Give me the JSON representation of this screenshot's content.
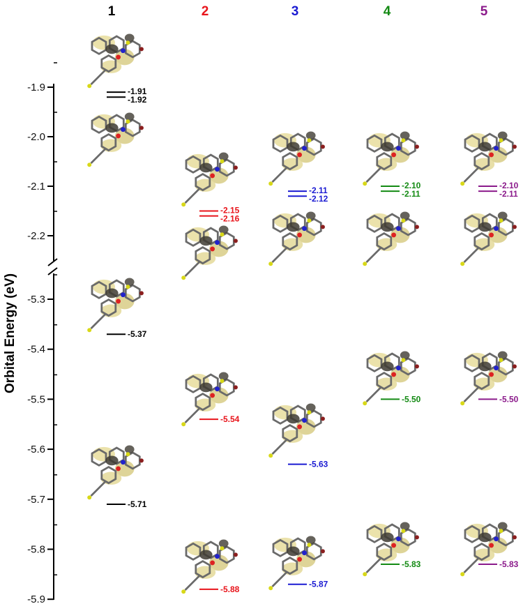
{
  "chart_data": {
    "type": "energy-level-diagram",
    "ylabel": "Orbital Energy (eV)",
    "axis_break": true,
    "ylim_upper": [
      -2.25,
      -1.85
    ],
    "ylim_lower": [
      -5.9,
      -5.25
    ],
    "ticks_upper": [
      -1.9,
      -2.0,
      -2.1,
      -2.2
    ],
    "tick_labels_upper": [
      "-1.9",
      "-2.0",
      "-2.1",
      "-2.2"
    ],
    "ticks_lower": [
      -5.3,
      -5.4,
      -5.5,
      -5.6,
      -5.7,
      -5.8,
      -5.9
    ],
    "tick_labels_lower": [
      "-5.3",
      "-5.4",
      "-5.5",
      "-5.6",
      "-5.7",
      "-5.8",
      "-5.9"
    ],
    "series": [
      {
        "name": "1",
        "color": "#000000",
        "lumo": [
          -1.91,
          -1.92
        ],
        "lumo_labels": [
          "-1.91",
          "-1.92"
        ],
        "homo": [
          -5.37,
          -5.71
        ],
        "homo_labels": [
          "-5.37",
          "-5.71"
        ]
      },
      {
        "name": "2",
        "color": "#e8141b",
        "lumo": [
          -2.15,
          -2.16
        ],
        "lumo_labels": [
          "-2.15",
          "-2.16"
        ],
        "homo": [
          -5.54,
          -5.88
        ],
        "homo_labels": [
          "-5.54",
          "-5.88"
        ]
      },
      {
        "name": "3",
        "color": "#1a1ad2",
        "lumo": [
          -2.11,
          -2.12
        ],
        "lumo_labels": [
          "-2.11",
          "-2.12"
        ],
        "homo": [
          -5.63,
          -5.87
        ],
        "homo_labels": [
          "-5.63",
          "-5.87"
        ]
      },
      {
        "name": "4",
        "color": "#138a13",
        "lumo": [
          -2.1,
          -2.11
        ],
        "lumo_labels": [
          "-2.10",
          "-2.11"
        ],
        "homo": [
          -5.5,
          -5.83
        ],
        "homo_labels": [
          "-5.50",
          "-5.83"
        ]
      },
      {
        "name": "5",
        "color": "#8b1a8b",
        "lumo": [
          -2.1,
          -2.11
        ],
        "lumo_labels": [
          "-2.10",
          "-2.11"
        ],
        "homo": [
          -5.5,
          -5.83
        ],
        "homo_labels": [
          "-5.50",
          "-5.83"
        ]
      }
    ]
  }
}
